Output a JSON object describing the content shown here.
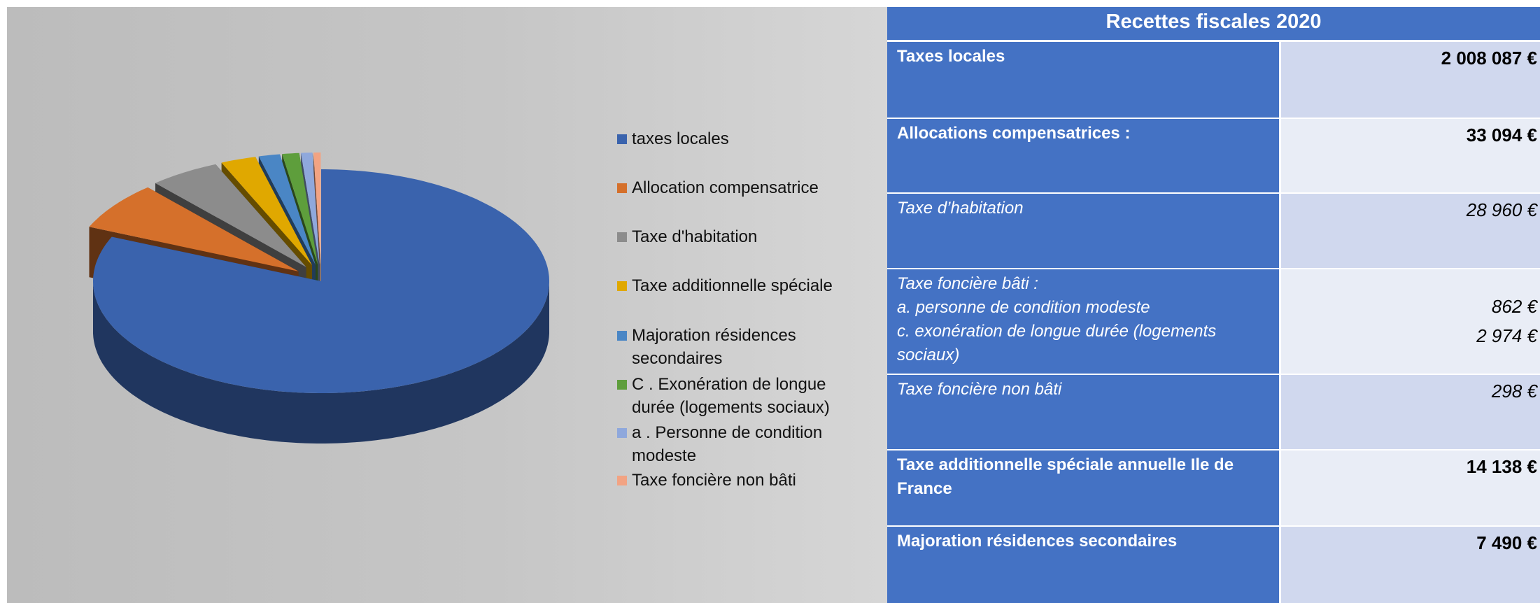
{
  "chart_data": {
    "type": "pie",
    "categories": [
      "taxes locales",
      "Allocation compensatrice",
      "Taxe d'habitation",
      "Taxe additionnelle spéciale",
      "Majoration résidences secondaires",
      "C . Exonération de longue durée (logements sociaux)",
      "a . Personne de condition modeste",
      "Taxe foncière non bâti"
    ],
    "values": [
      81.5,
      7,
      5,
      2.5,
      1.5,
      1.2,
      0.8,
      0.5
    ],
    "colors": [
      "#3a63ad",
      "#d5702b",
      "#8c8c8c",
      "#e0a800",
      "#4a86c5",
      "#5e9e3c",
      "#8fa8dc",
      "#f2a383"
    ]
  },
  "table": {
    "title": "Recettes fiscales 2020",
    "rows": [
      {
        "label": "Taxes locales",
        "value": "2 008 087 €"
      },
      {
        "label": "Allocations compensatrices :",
        "value": "33 094 €"
      },
      {
        "label": "Taxe d’habitation",
        "value": "28 960 €"
      },
      {
        "label": "Taxe foncière bâti :",
        "sublabels": [
          "a. personne de condition modeste",
          "c. exonération de longue durée (logements sociaux)"
        ],
        "values": [
          "862 €",
          "2 974 €"
        ]
      },
      {
        "label": "Taxe foncière non bâti",
        "value": "298 €"
      },
      {
        "label": "Taxe additionnelle spéciale annuelle Ile de France",
        "value": "14 138 €"
      },
      {
        "label": "Majoration résidences secondaires",
        "value": "7 490 €"
      }
    ]
  }
}
